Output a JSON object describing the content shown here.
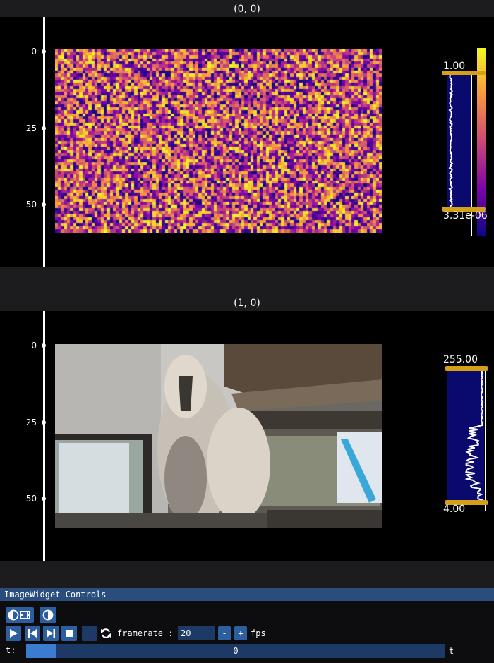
{
  "subplots": [
    {
      "title": "(0, 0)",
      "y_ticks": [
        "0",
        "25",
        "50"
      ],
      "cmap": "plasma",
      "hist": {
        "max_label": "1.00",
        "min_label": "3.31e-06"
      }
    },
    {
      "title": "(1, 0)",
      "y_ticks": [
        "0",
        "25",
        "50"
      ],
      "cmap": "grayscale",
      "hist": {
        "max_label": "255.00",
        "min_label": "4.00"
      }
    }
  ],
  "controls": {
    "title": "ImageWidget Controls",
    "framerate_label": "framerate :",
    "framerate_value": "20",
    "minus": "-",
    "plus": "+",
    "fps_label": "fps",
    "t_label": "t:",
    "t_value": "0",
    "t_end": "t",
    "t_progress": 0.07
  },
  "colors": {
    "hist_fill": "#0a0a6e",
    "hist_handle": "#d4a017",
    "button": "#2d5fa0",
    "panel_title": "#2a4d7e"
  },
  "icons": [
    "contrast-film-icon",
    "contrast-icon",
    "play-icon",
    "step-back-icon",
    "step-forward-icon",
    "stop-icon",
    "loop-icon"
  ]
}
